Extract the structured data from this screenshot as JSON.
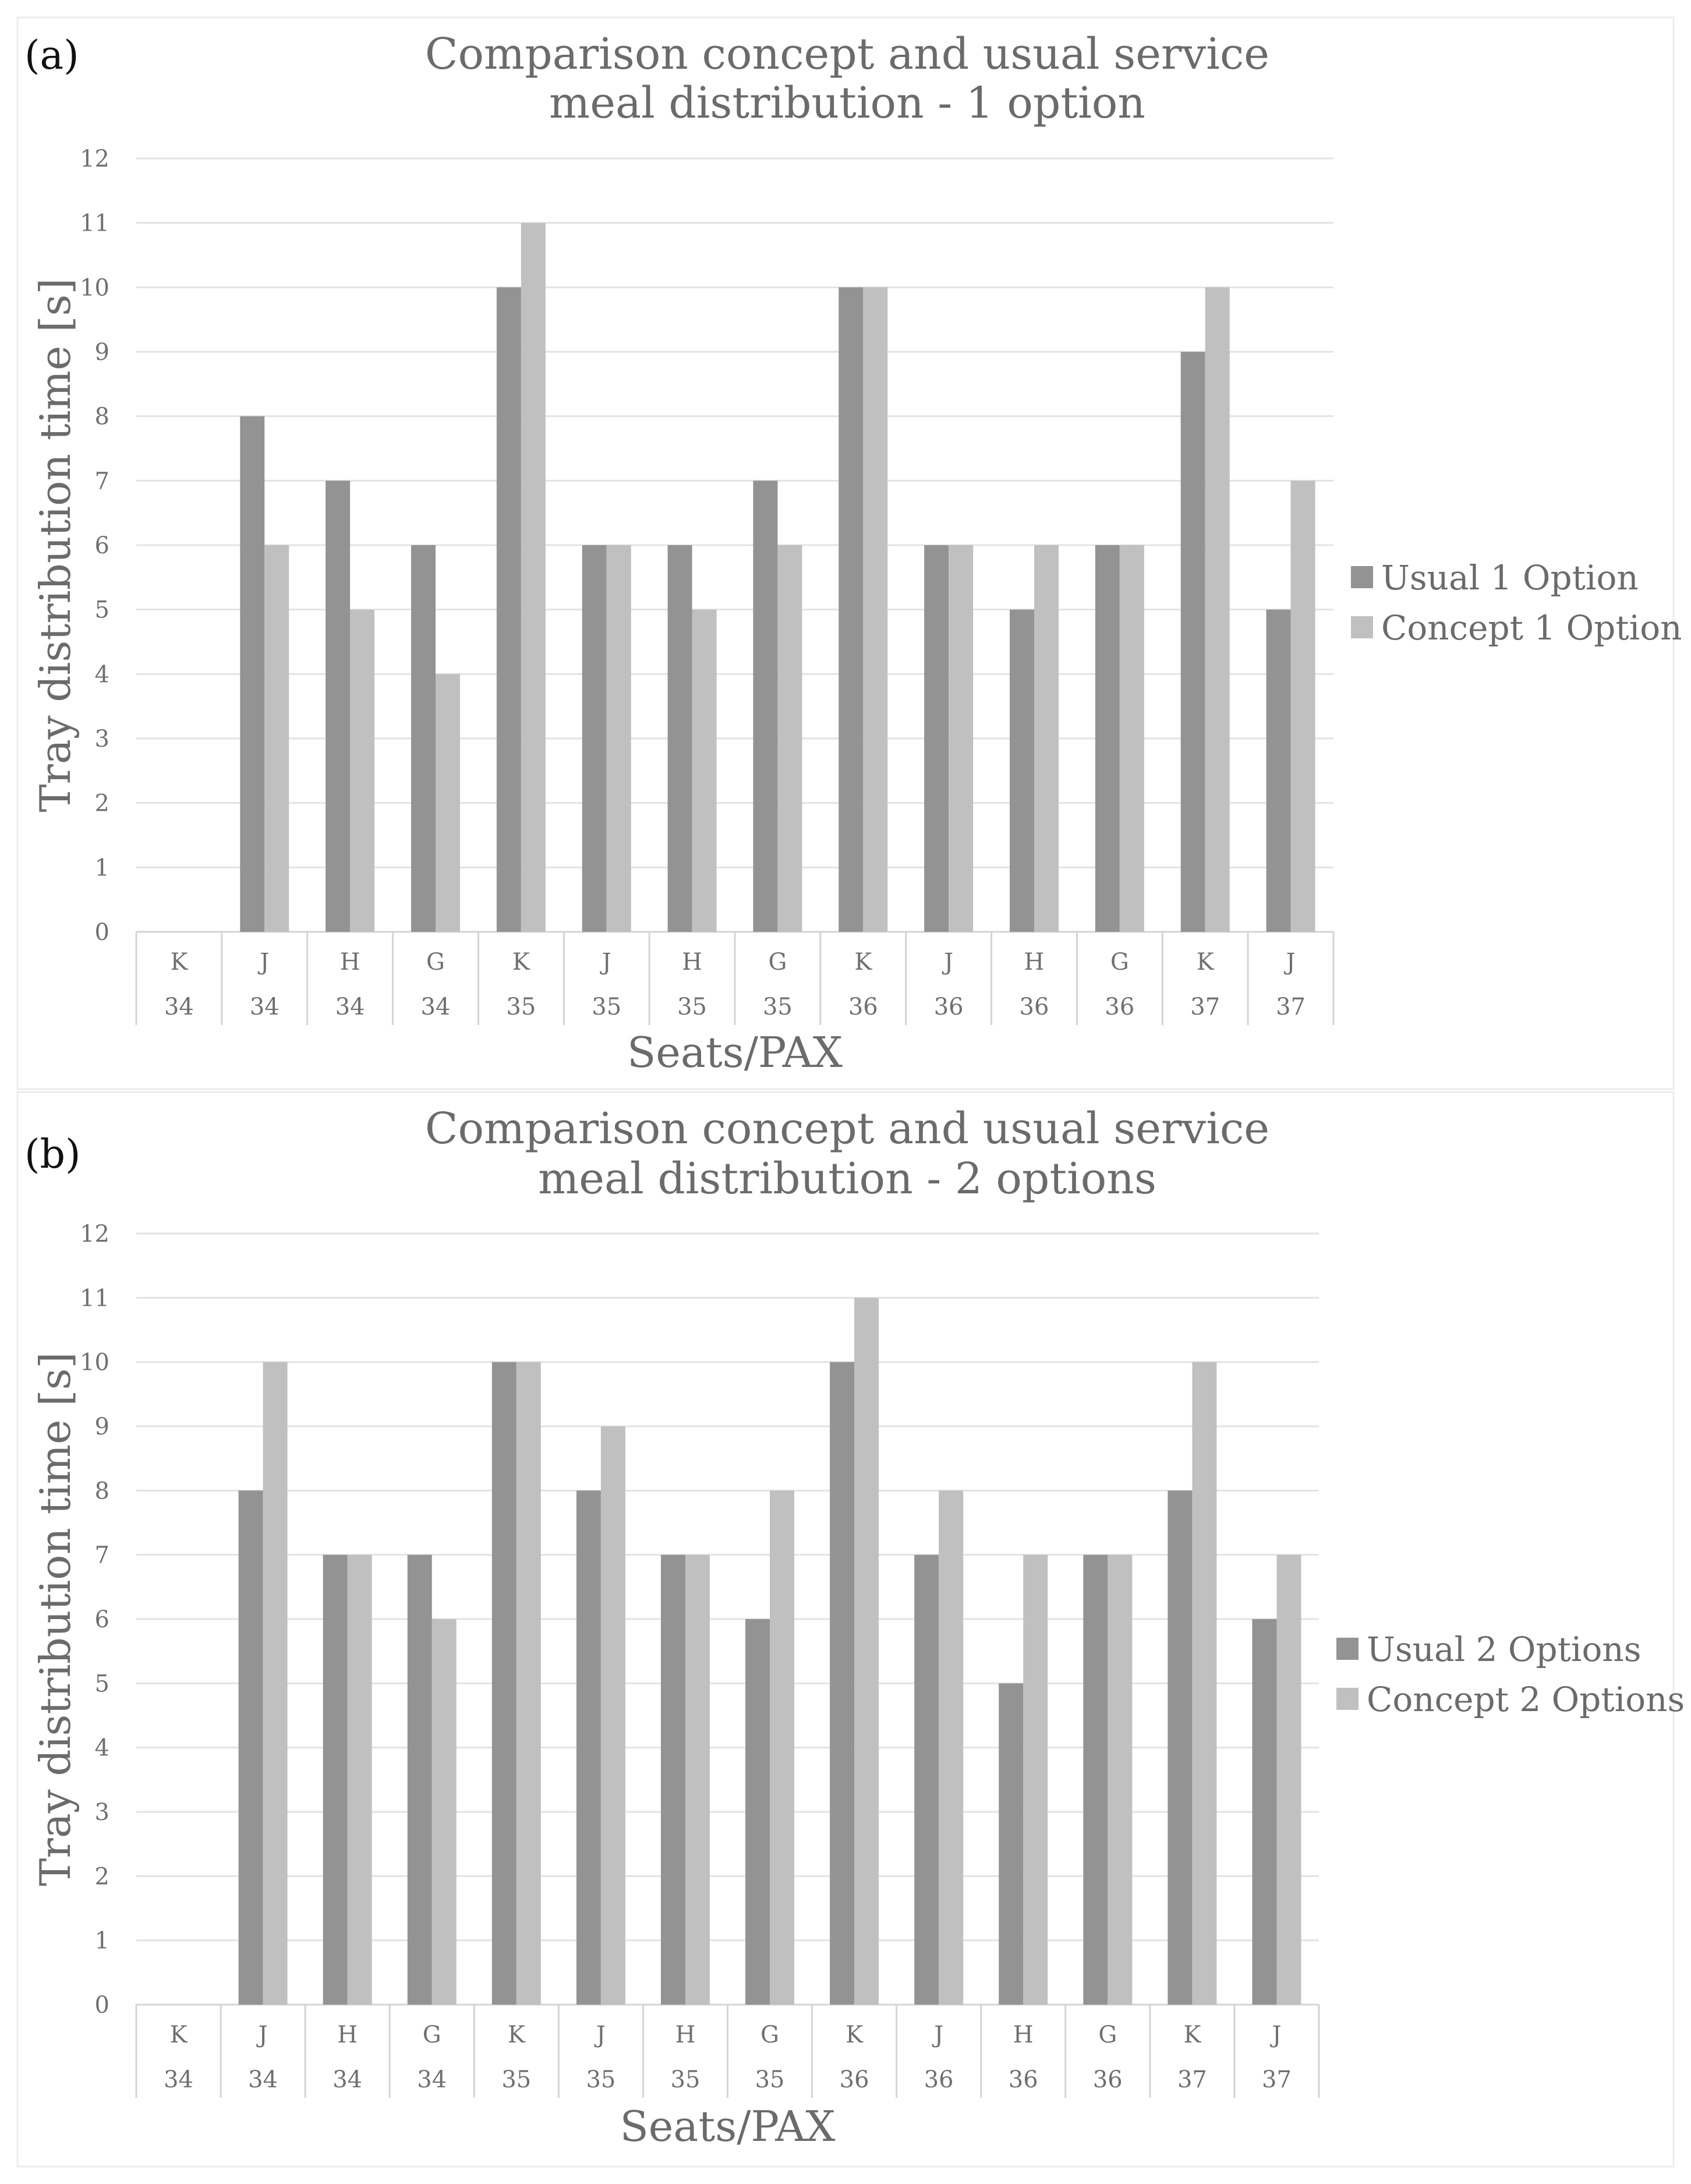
{
  "chart_data": [
    {
      "type": "bar",
      "panel_label": "(a)",
      "title": "Comparison concept and usual service meal distribution - 1 option",
      "title_lines": [
        "Comparison concept and usual service",
        "meal distribution - 1 option"
      ],
      "xlabel": "Seats/PAX",
      "ylabel": "Tray distribution time [s]",
      "ylim": [
        0,
        12
      ],
      "yticks": [
        "0",
        "1",
        "2",
        "3",
        "4",
        "5",
        "6",
        "7",
        "8",
        "9",
        "10",
        "11",
        "12"
      ],
      "grid": true,
      "legend_position": "right",
      "categories": [
        "K 34",
        "J 34",
        "H 34",
        "G 34",
        "K 35",
        "J 35",
        "H 35",
        "G 35",
        "K 36",
        "J 36",
        "H 36",
        "G 36",
        "K 37",
        "J 37"
      ],
      "category_seats": [
        "K",
        "J",
        "H",
        "G",
        "K",
        "J",
        "H",
        "G",
        "K",
        "J",
        "H",
        "G",
        "K",
        "J"
      ],
      "category_rows": [
        "34",
        "34",
        "34",
        "34",
        "35",
        "35",
        "35",
        "35",
        "36",
        "36",
        "36",
        "36",
        "37",
        "37"
      ],
      "series": [
        {
          "name": "Usual 1 Option",
          "color": "#939393",
          "values": [
            0,
            8,
            7,
            6,
            10,
            6,
            6,
            7,
            10,
            6,
            5,
            6,
            9,
            5
          ]
        },
        {
          "name": "Concept 1 Option",
          "color": "#c0c0c0",
          "values": [
            0,
            6,
            5,
            4,
            11,
            6,
            5,
            6,
            10,
            6,
            6,
            6,
            10,
            7
          ]
        }
      ]
    },
    {
      "type": "bar",
      "panel_label": "(b)",
      "title": "Comparison concept and usual service meal distribution - 2 options",
      "title_lines": [
        "Comparison concept and usual service",
        "meal distribution - 2 options"
      ],
      "xlabel": "Seats/PAX",
      "ylabel": "Tray distribution time [s]",
      "ylim": [
        0,
        12
      ],
      "yticks": [
        "0",
        "1",
        "2",
        "3",
        "4",
        "5",
        "6",
        "7",
        "8",
        "9",
        "10",
        "11",
        "12"
      ],
      "grid": true,
      "legend_position": "right",
      "categories": [
        "K 34",
        "J 34",
        "H 34",
        "G 34",
        "K 35",
        "J 35",
        "H 35",
        "G 35",
        "K 36",
        "J 36",
        "H 36",
        "G 36",
        "K 37",
        "J 37"
      ],
      "category_seats": [
        "K",
        "J",
        "H",
        "G",
        "K",
        "J",
        "H",
        "G",
        "K",
        "J",
        "H",
        "G",
        "K",
        "J"
      ],
      "category_rows": [
        "34",
        "34",
        "34",
        "34",
        "35",
        "35",
        "35",
        "35",
        "36",
        "36",
        "36",
        "36",
        "37",
        "37"
      ],
      "series": [
        {
          "name": "Usual 2 Options",
          "color": "#939393",
          "values": [
            0,
            8,
            7,
            7,
            10,
            8,
            7,
            6,
            10,
            7,
            5,
            7,
            8,
            6
          ]
        },
        {
          "name": "Concept 2 Options",
          "color": "#c0c0c0",
          "values": [
            0,
            10,
            7,
            6,
            10,
            9,
            7,
            8,
            11,
            8,
            7,
            7,
            10,
            7
          ]
        }
      ]
    }
  ]
}
